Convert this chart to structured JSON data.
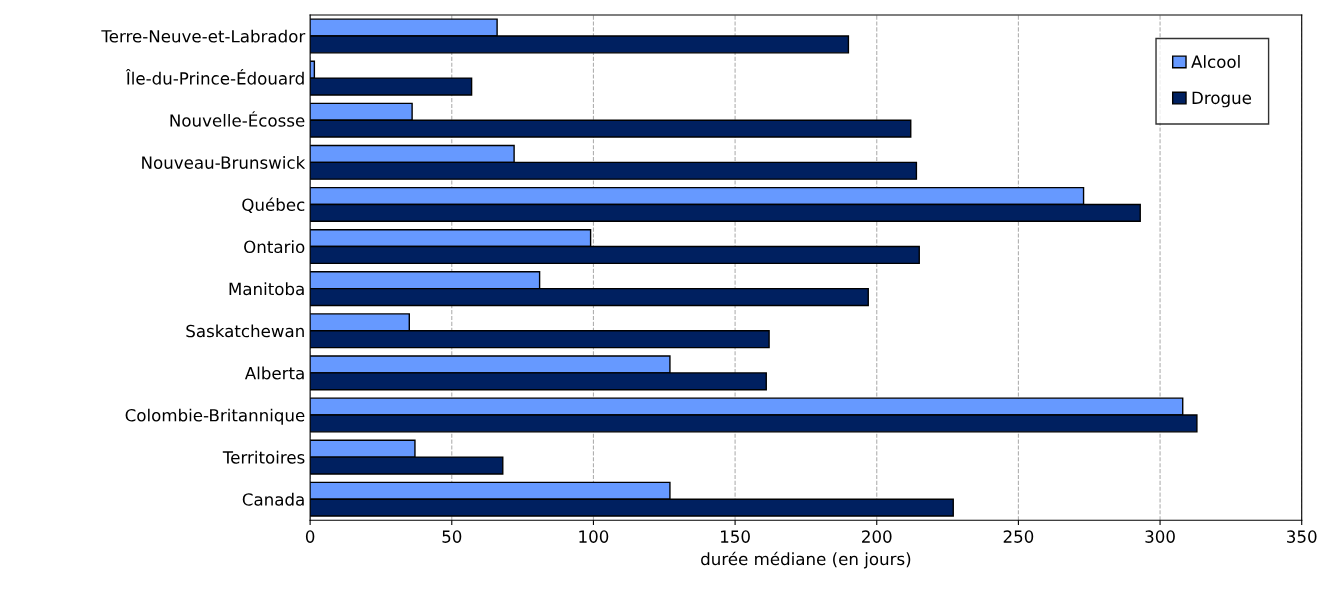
{
  "chart_data": {
    "type": "bar",
    "orientation": "horizontal",
    "xlabel": "durée médiane (en jours)",
    "categories": [
      "Terre-Neuve-et-Labrador",
      "Île-du-Prince-Édouard",
      "Nouvelle-Écosse",
      "Nouveau-Brunswick",
      "Québec",
      "Ontario",
      "Manitoba",
      "Saskatchewan",
      "Alberta",
      "Colombie-Britannique",
      "Territoires",
      "Canada"
    ],
    "series": [
      {
        "name": "Alcool",
        "color": "#6699ff",
        "values": [
          66,
          1.5,
          36,
          72,
          273,
          99,
          81,
          35,
          127,
          308,
          37,
          127
        ]
      },
      {
        "name": "Drogue",
        "color": "#002060",
        "values": [
          190,
          57,
          212,
          214,
          293,
          215,
          197,
          162,
          161,
          313,
          68,
          227
        ]
      }
    ],
    "xlim": [
      0,
      350
    ],
    "xticks": [
      0,
      50,
      100,
      150,
      200,
      250,
      300,
      350
    ],
    "grid": "x",
    "legend": "top right"
  }
}
